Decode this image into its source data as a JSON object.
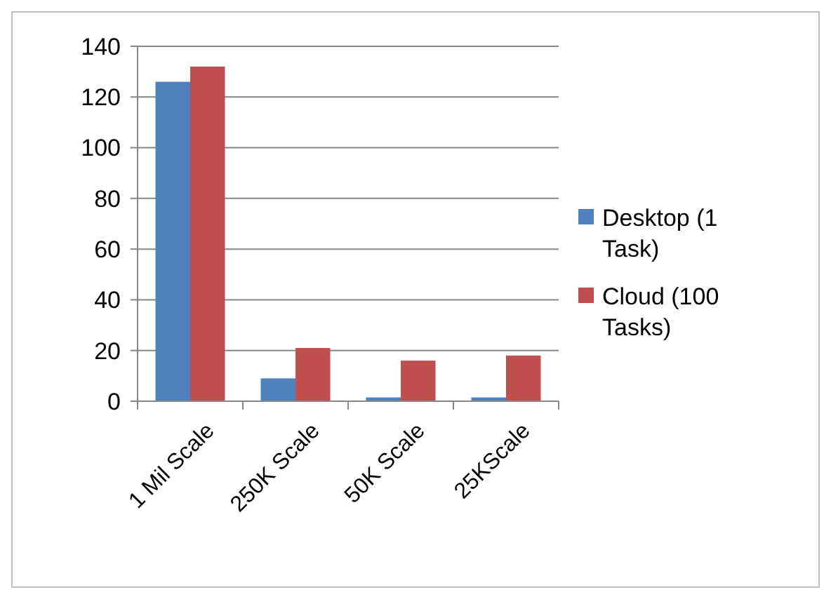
{
  "chart_data": {
    "type": "bar",
    "categories": [
      "1 Mil Scale",
      "250K Scale",
      "50K Scale",
      "25KScale"
    ],
    "series": [
      {
        "name": "Desktop (1 Task)",
        "color": "#4f81bd",
        "values": [
          126,
          9,
          1.5,
          1.5
        ]
      },
      {
        "name": "Cloud (100 Tasks)",
        "color": "#c0504d",
        "values": [
          132,
          21,
          16,
          18
        ]
      }
    ],
    "ylim": [
      0,
      140
    ],
    "yticks": [
      0,
      20,
      40,
      60,
      80,
      100,
      120,
      140
    ],
    "grid": "y",
    "legend": "right"
  }
}
